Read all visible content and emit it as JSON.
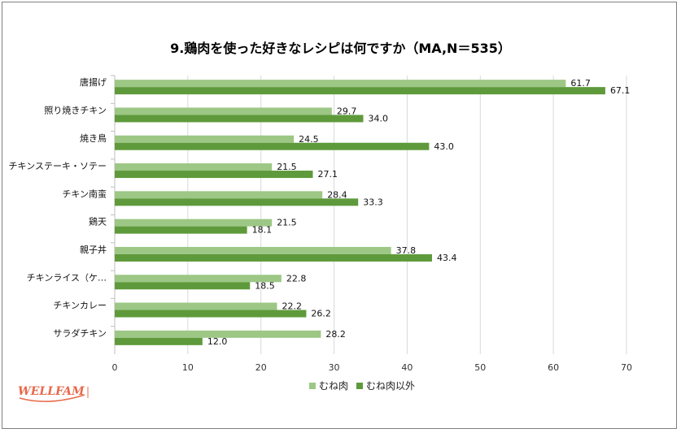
{
  "chart_data": {
    "type": "bar",
    "orientation": "horizontal",
    "title": "9.鶏肉を使った好きなレシピは何ですか（MA,N＝535）",
    "categories": [
      "唐揚げ",
      "照り焼きチキン",
      "焼き鳥",
      "チキンステーキ・ソテー",
      "チキン南蛮",
      "鶏天",
      "親子丼",
      "チキンライス（ケ…",
      "チキンカレー",
      "サラダチキン"
    ],
    "series": [
      {
        "name": "むね肉",
        "color": "#9dc785",
        "values": [
          61.7,
          29.7,
          24.5,
          21.5,
          28.4,
          21.5,
          37.8,
          22.8,
          22.2,
          28.2
        ]
      },
      {
        "name": "むね肉以外",
        "color": "#5e9a3b",
        "values": [
          67.1,
          34.0,
          43.0,
          27.1,
          33.3,
          18.1,
          43.4,
          18.5,
          26.2,
          12.0
        ]
      }
    ],
    "xlim": [
      0,
      70
    ],
    "xticks": [
      0,
      10,
      20,
      30,
      40,
      50,
      60,
      70
    ],
    "grid": true,
    "legend_position": "bottom"
  },
  "logo": {
    "text": "WELLFAM",
    "color": "#e8694a"
  }
}
